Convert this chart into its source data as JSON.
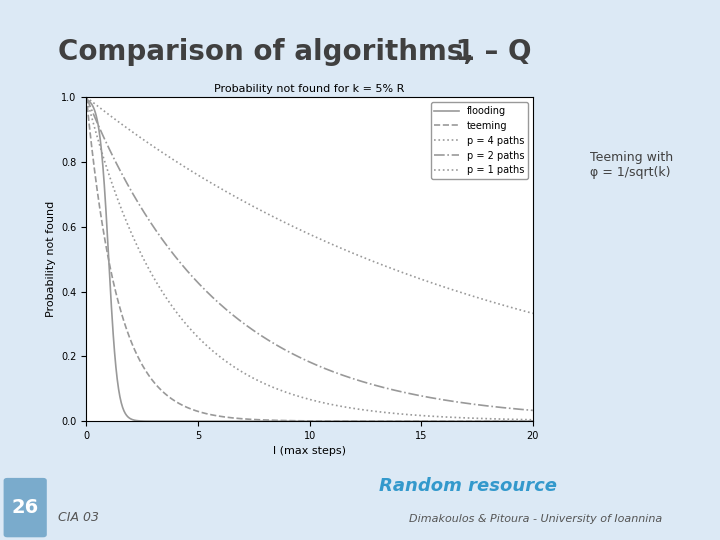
{
  "title_main": "Comparison of algorithms,",
  "title_suffix": " 1 – Q",
  "chart_title": "Probability not found for k = 5% R",
  "xlabel": "l (max steps)",
  "ylabel": "Probability not found",
  "xlim": [
    0,
    20
  ],
  "ylim": [
    0,
    1
  ],
  "xticks": [
    0,
    5,
    10,
    15,
    20
  ],
  "yticks": [
    0,
    0.2,
    0.4,
    0.6,
    0.8,
    1
  ],
  "annotation": "Teeming with\nφ = 1/sqrt(k)",
  "footer_text": "Random resource",
  "slide_num": "26",
  "footer_left": "CIA 03",
  "footer_right": "Dimakoulos & Pitoura - University of Ioannina",
  "bg_color": "#dce9f5",
  "content_bg": "#ffffff",
  "title_color": "#404040",
  "footer_color": "#3399cc",
  "legend_entries": [
    "flooding",
    "teeming",
    "p = 4 paths",
    "p = 2 paths",
    "p = 1 paths"
  ],
  "line_styles": [
    "-",
    "--",
    ":",
    "-.",
    ":"
  ],
  "line_colors": [
    "#aaaaaa",
    "#aaaaaa",
    "#aaaaaa",
    "#aaaaaa",
    "#aaaaaa"
  ],
  "line_widths": [
    1.0,
    1.0,
    1.0,
    1.0,
    1.0
  ],
  "flooding_decay": 3.5,
  "teeming_decay": 1.2,
  "p4_decay": 0.5,
  "p2_decay": 0.25,
  "p1_decay": 0.13
}
